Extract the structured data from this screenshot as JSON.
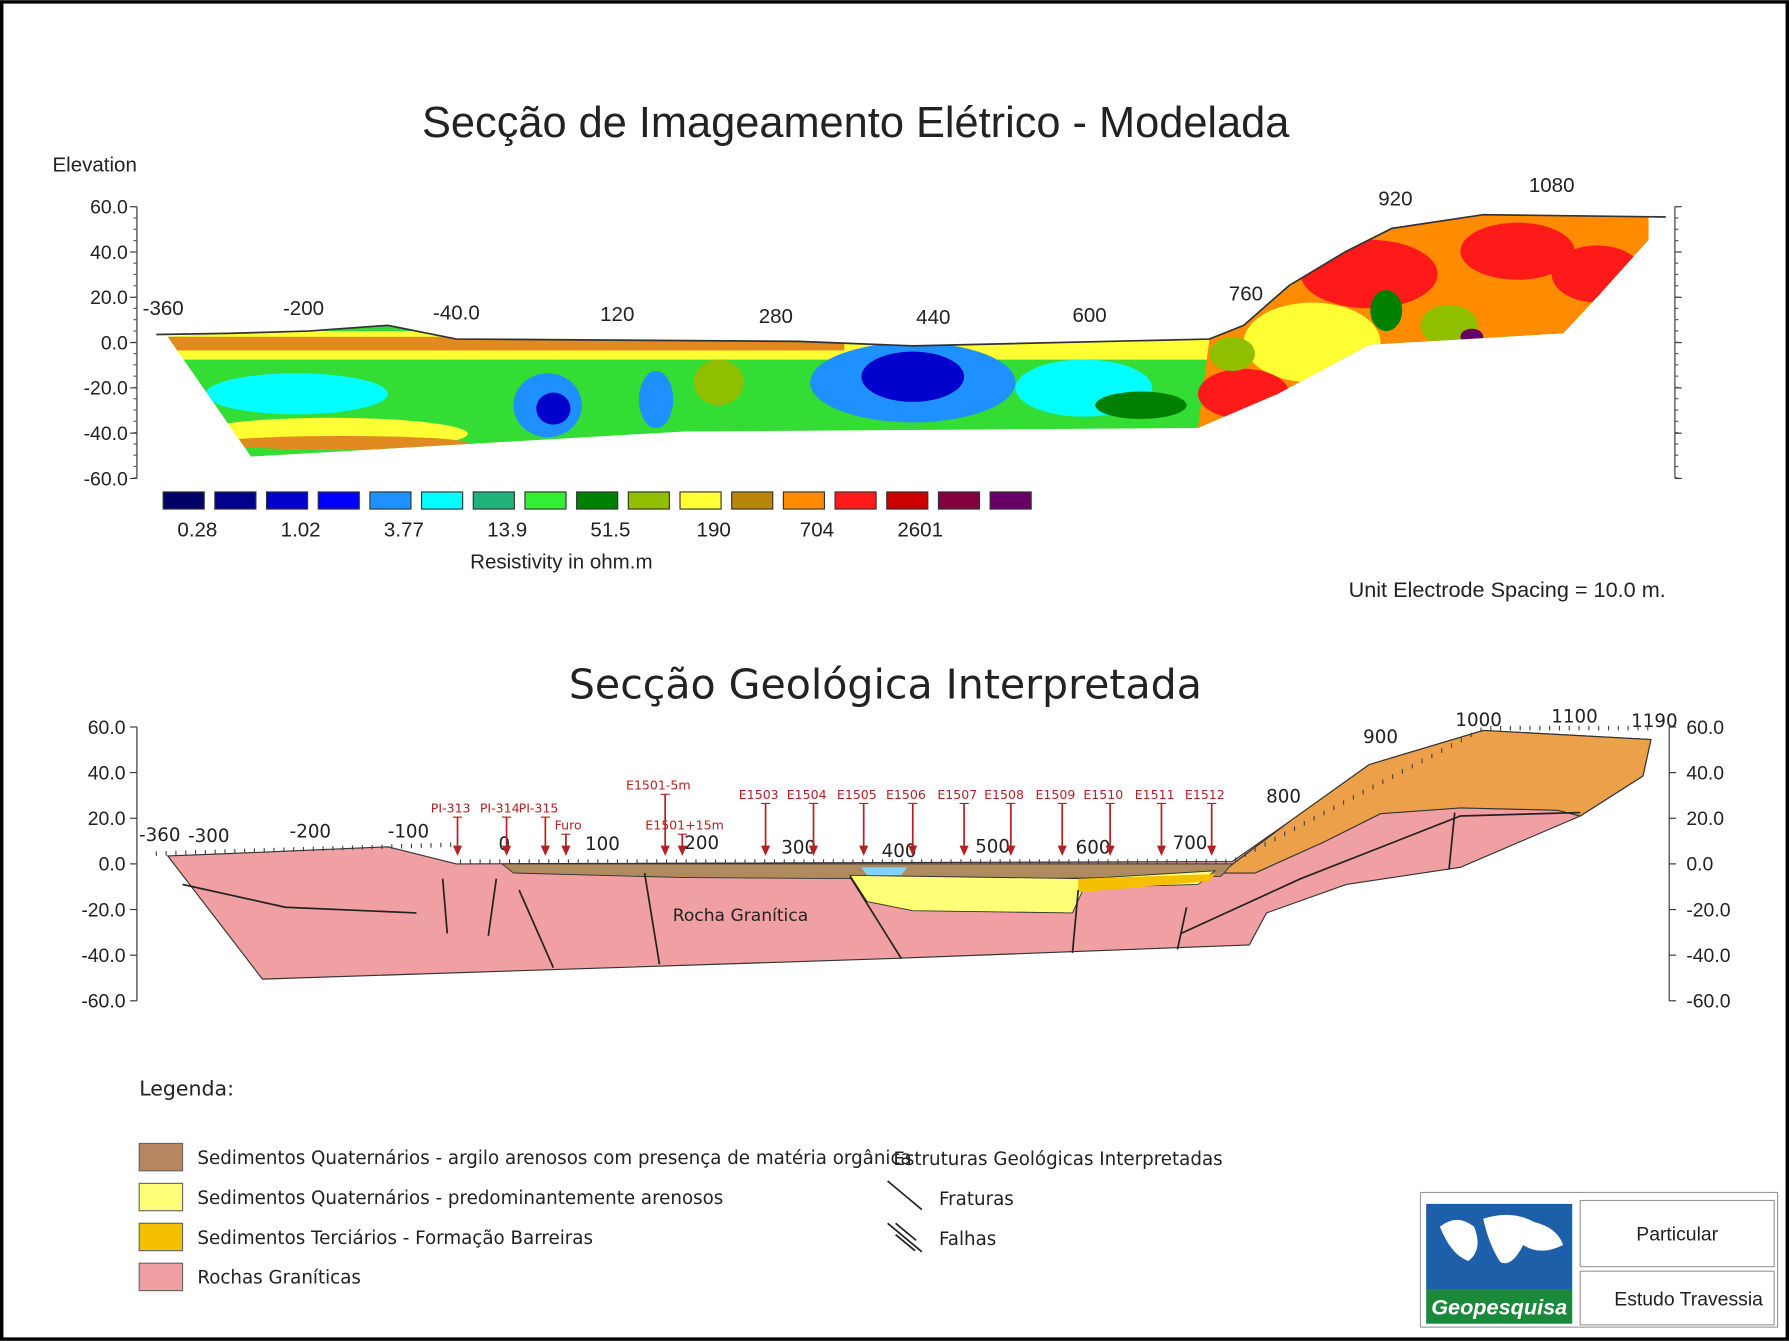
{
  "top": {
    "title": "Secção de Imageamento Elétrico - Modelada",
    "y_label": "Elevation",
    "y_ticks": [
      "60.0",
      "40.0",
      "20.0",
      "0.0",
      "-20.0",
      "-40.0",
      "-60.0"
    ],
    "x_ticks": [
      "-360",
      "-200",
      "-40.0",
      "120",
      "280",
      "440",
      "600",
      "760",
      "920",
      "1080"
    ],
    "scale_labels": [
      "0.28",
      "1.02",
      "3.77",
      "13.9",
      "51.5",
      "190",
      "704",
      "2601"
    ],
    "scale_title": "Resistivity in ohm.m",
    "note": "Unit Electrode Spacing = 10.0 m."
  },
  "bottom": {
    "title": "Secção Geológica Interpretada",
    "y_ticks": [
      "60.0",
      "40.0",
      "20.0",
      "0.0",
      "-20.0",
      "-40.0",
      "-60.0"
    ],
    "x_ticks": [
      "-360",
      "-300",
      "-200",
      "-100",
      "0",
      "100",
      "200",
      "300",
      "400",
      "500",
      "600",
      "700",
      "800",
      "900",
      "1000",
      "1100",
      "1190"
    ],
    "wells": [
      "PI-313",
      "PI-314",
      "PI-315",
      "Furo",
      "E1501-5m",
      "E1501+15m",
      "E1503",
      "E1504",
      "E1505",
      "E1506",
      "E1507",
      "E1508",
      "E1509",
      "E1510",
      "E1511",
      "E1512"
    ],
    "rock_label": "Rocha Granítica"
  },
  "legend": {
    "title": "Legenda:",
    "items": [
      "Sedimentos Quaternários - argilo arenosos com presença de matéria orgânica",
      "Sedimentos Quaternários - predominantemente arenosos",
      "Sedimentos Terciários - Formação Barreiras",
      "Rochas Graníticas"
    ],
    "structures_title": "Estruturas Geológicas Interpretadas",
    "structures": [
      "Fraturas",
      "Falhas"
    ]
  },
  "logo": {
    "brand": "Geopesquisa",
    "client": "Particular",
    "project": "Estudo Travessia"
  }
}
